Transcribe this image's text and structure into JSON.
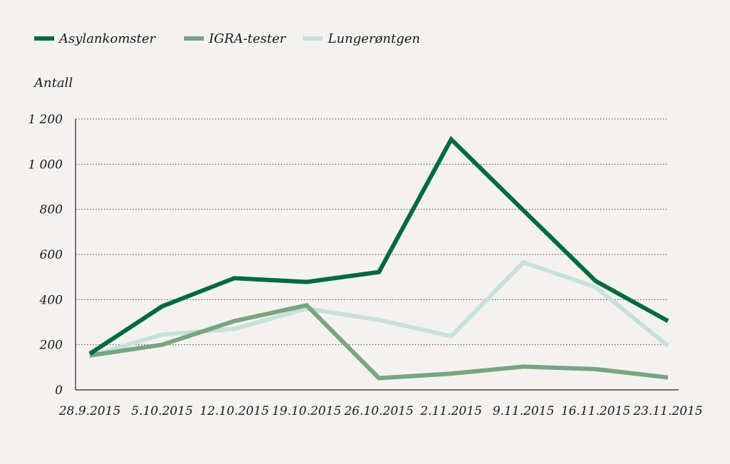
{
  "chart_data": {
    "type": "line",
    "title": "",
    "xlabel": "",
    "ylabel": "Antall",
    "categories": [
      "28.9.2015",
      "5.10.2015",
      "12.10.2015",
      "19.10.2015",
      "26.10.2015",
      "2.11.2015",
      "9.11.2015",
      "16.11.2015",
      "23.11.2015"
    ],
    "ylim": [
      0,
      1200
    ],
    "yticks": [
      0,
      200,
      400,
      600,
      800,
      1000,
      1200
    ],
    "ytick_labels": [
      "0",
      "200",
      "400",
      "600",
      "800",
      "1 000",
      "1 200"
    ],
    "grid": true,
    "legend_position": "top-left",
    "series": [
      {
        "name": "Asylankomster",
        "color": "#006a3a",
        "values": [
          160,
          370,
          495,
          478,
          522,
          1110,
          795,
          482,
          305
        ]
      },
      {
        "name": "IGRA-tester",
        "color": "#77a57f",
        "values": [
          152,
          200,
          305,
          375,
          52,
          72,
          103,
          92,
          55
        ]
      },
      {
        "name": "Lungerøntgen",
        "color": "#c7e0da",
        "values": [
          150,
          245,
          270,
          360,
          310,
          238,
          565,
          455,
          195
        ]
      }
    ]
  }
}
